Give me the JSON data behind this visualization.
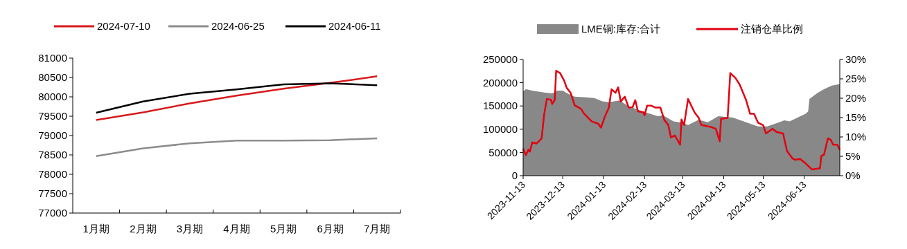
{
  "chart_data": [
    {
      "type": "line",
      "categories": [
        "1月期",
        "2月期",
        "3月期",
        "4月期",
        "5月期",
        "6月期",
        "7月期"
      ],
      "series": [
        {
          "name": "2024-07-10",
          "color": "#d7191c",
          "values": [
            79400,
            79600,
            79830,
            80030,
            80210,
            80360,
            80530
          ]
        },
        {
          "name": "2024-06-25",
          "color": "#8c8c8c",
          "values": [
            78470,
            78670,
            78800,
            78870,
            78870,
            78880,
            78930
          ]
        },
        {
          "name": "2024-06-11",
          "color": "#000000",
          "values": [
            79590,
            79880,
            80080,
            80190,
            80320,
            80350,
            80300
          ]
        }
      ],
      "ylim": [
        77000,
        81000
      ],
      "yticks": [
        77000,
        77500,
        78000,
        78500,
        79000,
        79500,
        80000,
        80500,
        81000
      ],
      "grid": false,
      "legend": "top"
    },
    {
      "type": "area",
      "xlim": [
        "2023-11-13",
        "2024-07-10"
      ],
      "xticks": [
        "2023-11-13",
        "2023-12-13",
        "2024-01-13",
        "2024-02-13",
        "2024-03-13",
        "2024-04-13",
        "2024-05-13",
        "2024-06-13"
      ],
      "ylim": [
        0,
        250000
      ],
      "yticks": [
        0,
        50000,
        100000,
        150000,
        200000,
        250000
      ],
      "y2lim": [
        0,
        30
      ],
      "y2ticks": [
        {
          "value": 0,
          "label": "0%"
        },
        {
          "value": 5,
          "label": "5%"
        },
        {
          "value": 10,
          "label": "10%"
        },
        {
          "value": 15,
          "label": "15%"
        },
        {
          "value": 20,
          "label": "20%"
        },
        {
          "value": 25,
          "label": "25%"
        },
        {
          "value": 30,
          "label": "30%"
        }
      ],
      "grid": false,
      "legend": "top",
      "series": [
        {
          "name": "LME铜:库存:合计",
          "color": "#888888",
          "x": [
            "2023-11-13",
            "2023-11-15",
            "2023-11-22",
            "2023-11-29",
            "2023-12-05",
            "2023-12-09",
            "2023-12-13",
            "2023-12-16",
            "2023-12-22",
            "2023-12-29",
            "2024-01-06",
            "2024-01-12",
            "2024-01-17",
            "2024-01-25",
            "2024-02-01",
            "2024-02-12",
            "2024-02-23",
            "2024-02-27",
            "2024-03-06",
            "2024-03-13",
            "2024-03-17",
            "2024-03-25",
            "2024-04-01",
            "2024-04-09",
            "2024-04-20",
            "2024-05-01",
            "2024-05-09",
            "2024-05-16",
            "2024-05-24",
            "2024-05-29",
            "2024-06-02",
            "2024-06-08",
            "2024-06-14",
            "2024-06-16",
            "2024-06-17",
            "2024-06-23",
            "2024-06-28",
            "2024-07-04",
            "2024-07-10"
          ],
          "values": [
            181000,
            186000,
            182000,
            179000,
            177000,
            183000,
            183000,
            178000,
            170000,
            169000,
            167000,
            160000,
            158000,
            162000,
            149000,
            138000,
            128000,
            130000,
            117000,
            114000,
            109000,
            120000,
            115000,
            128000,
            125000,
            114000,
            106000,
            106000,
            114000,
            119000,
            117000,
            125000,
            133000,
            138000,
            165000,
            178000,
            186000,
            194000,
            197000
          ]
        },
        {
          "name": "注销仓单比例",
          "type": "line",
          "axis": "y2",
          "color": "#e3000f",
          "x": [
            "2023-11-13",
            "2023-11-15",
            "2023-11-17",
            "2023-11-18",
            "2023-11-20",
            "2023-11-23",
            "2023-11-25",
            "2023-11-27",
            "2023-11-29",
            "2023-12-01",
            "2023-12-04",
            "2023-12-05",
            "2023-12-07",
            "2023-12-08",
            "2023-12-11",
            "2023-12-14",
            "2023-12-16",
            "2023-12-19",
            "2023-12-22",
            "2023-12-27",
            "2023-12-29",
            "2024-01-04",
            "2024-01-09",
            "2024-01-11",
            "2024-01-14",
            "2024-01-17",
            "2024-01-19",
            "2024-01-22",
            "2024-01-24",
            "2024-01-26",
            "2024-01-29",
            "2024-02-01",
            "2024-02-04",
            "2024-02-06",
            "2024-02-08",
            "2024-02-12",
            "2024-02-13",
            "2024-02-15",
            "2024-02-18",
            "2024-02-21",
            "2024-02-25",
            "2024-02-28",
            "2024-03-02",
            "2024-03-04",
            "2024-03-07",
            "2024-03-11",
            "2024-03-12",
            "2024-03-14",
            "2024-03-17",
            "2024-03-22",
            "2024-03-25",
            "2024-03-27",
            "2024-04-03",
            "2024-04-07",
            "2024-04-10",
            "2024-04-11",
            "2024-04-16",
            "2024-04-18",
            "2024-04-22",
            "2024-04-25",
            "2024-04-30",
            "2024-05-03",
            "2024-05-06",
            "2024-05-09",
            "2024-05-13",
            "2024-05-15",
            "2024-05-20",
            "2024-05-23",
            "2024-05-28",
            "2024-05-31",
            "2024-06-04",
            "2024-06-06",
            "2024-06-10",
            "2024-06-14",
            "2024-06-19",
            "2024-06-25",
            "2024-06-26",
            "2024-06-28",
            "2024-07-01",
            "2024-07-03",
            "2024-07-05",
            "2024-07-08",
            "2024-07-10"
          ],
          "values": [
            7.0,
            5.3,
            6.7,
            6.2,
            8.6,
            8.3,
            8.9,
            9.6,
            16.0,
            19.8,
            19.6,
            18.5,
            19.6,
            27.1,
            26.5,
            24.6,
            22.7,
            21.4,
            18.2,
            17.2,
            16.1,
            14.0,
            13.4,
            12.4,
            15.3,
            17.6,
            22.3,
            21.4,
            22.8,
            19.1,
            20.4,
            17.6,
            17.7,
            19.5,
            16.6,
            16.4,
            15.6,
            18.1,
            18.1,
            17.6,
            17.6,
            14.4,
            13.1,
            9.9,
            10.4,
            8.0,
            14.5,
            13.1,
            19.8,
            16.3,
            15.0,
            13.1,
            12.6,
            12.1,
            8.9,
            14.7,
            14.9,
            26.5,
            25.2,
            23.6,
            19.5,
            16.0,
            16.0,
            13.7,
            13.0,
            10.9,
            12.1,
            11.3,
            10.9,
            6.4,
            4.5,
            4.1,
            4.3,
            3.2,
            1.6,
            1.9,
            5.1,
            5.4,
            9.6,
            9.3,
            8.0,
            8.0,
            6.7
          ]
        }
      ]
    }
  ]
}
